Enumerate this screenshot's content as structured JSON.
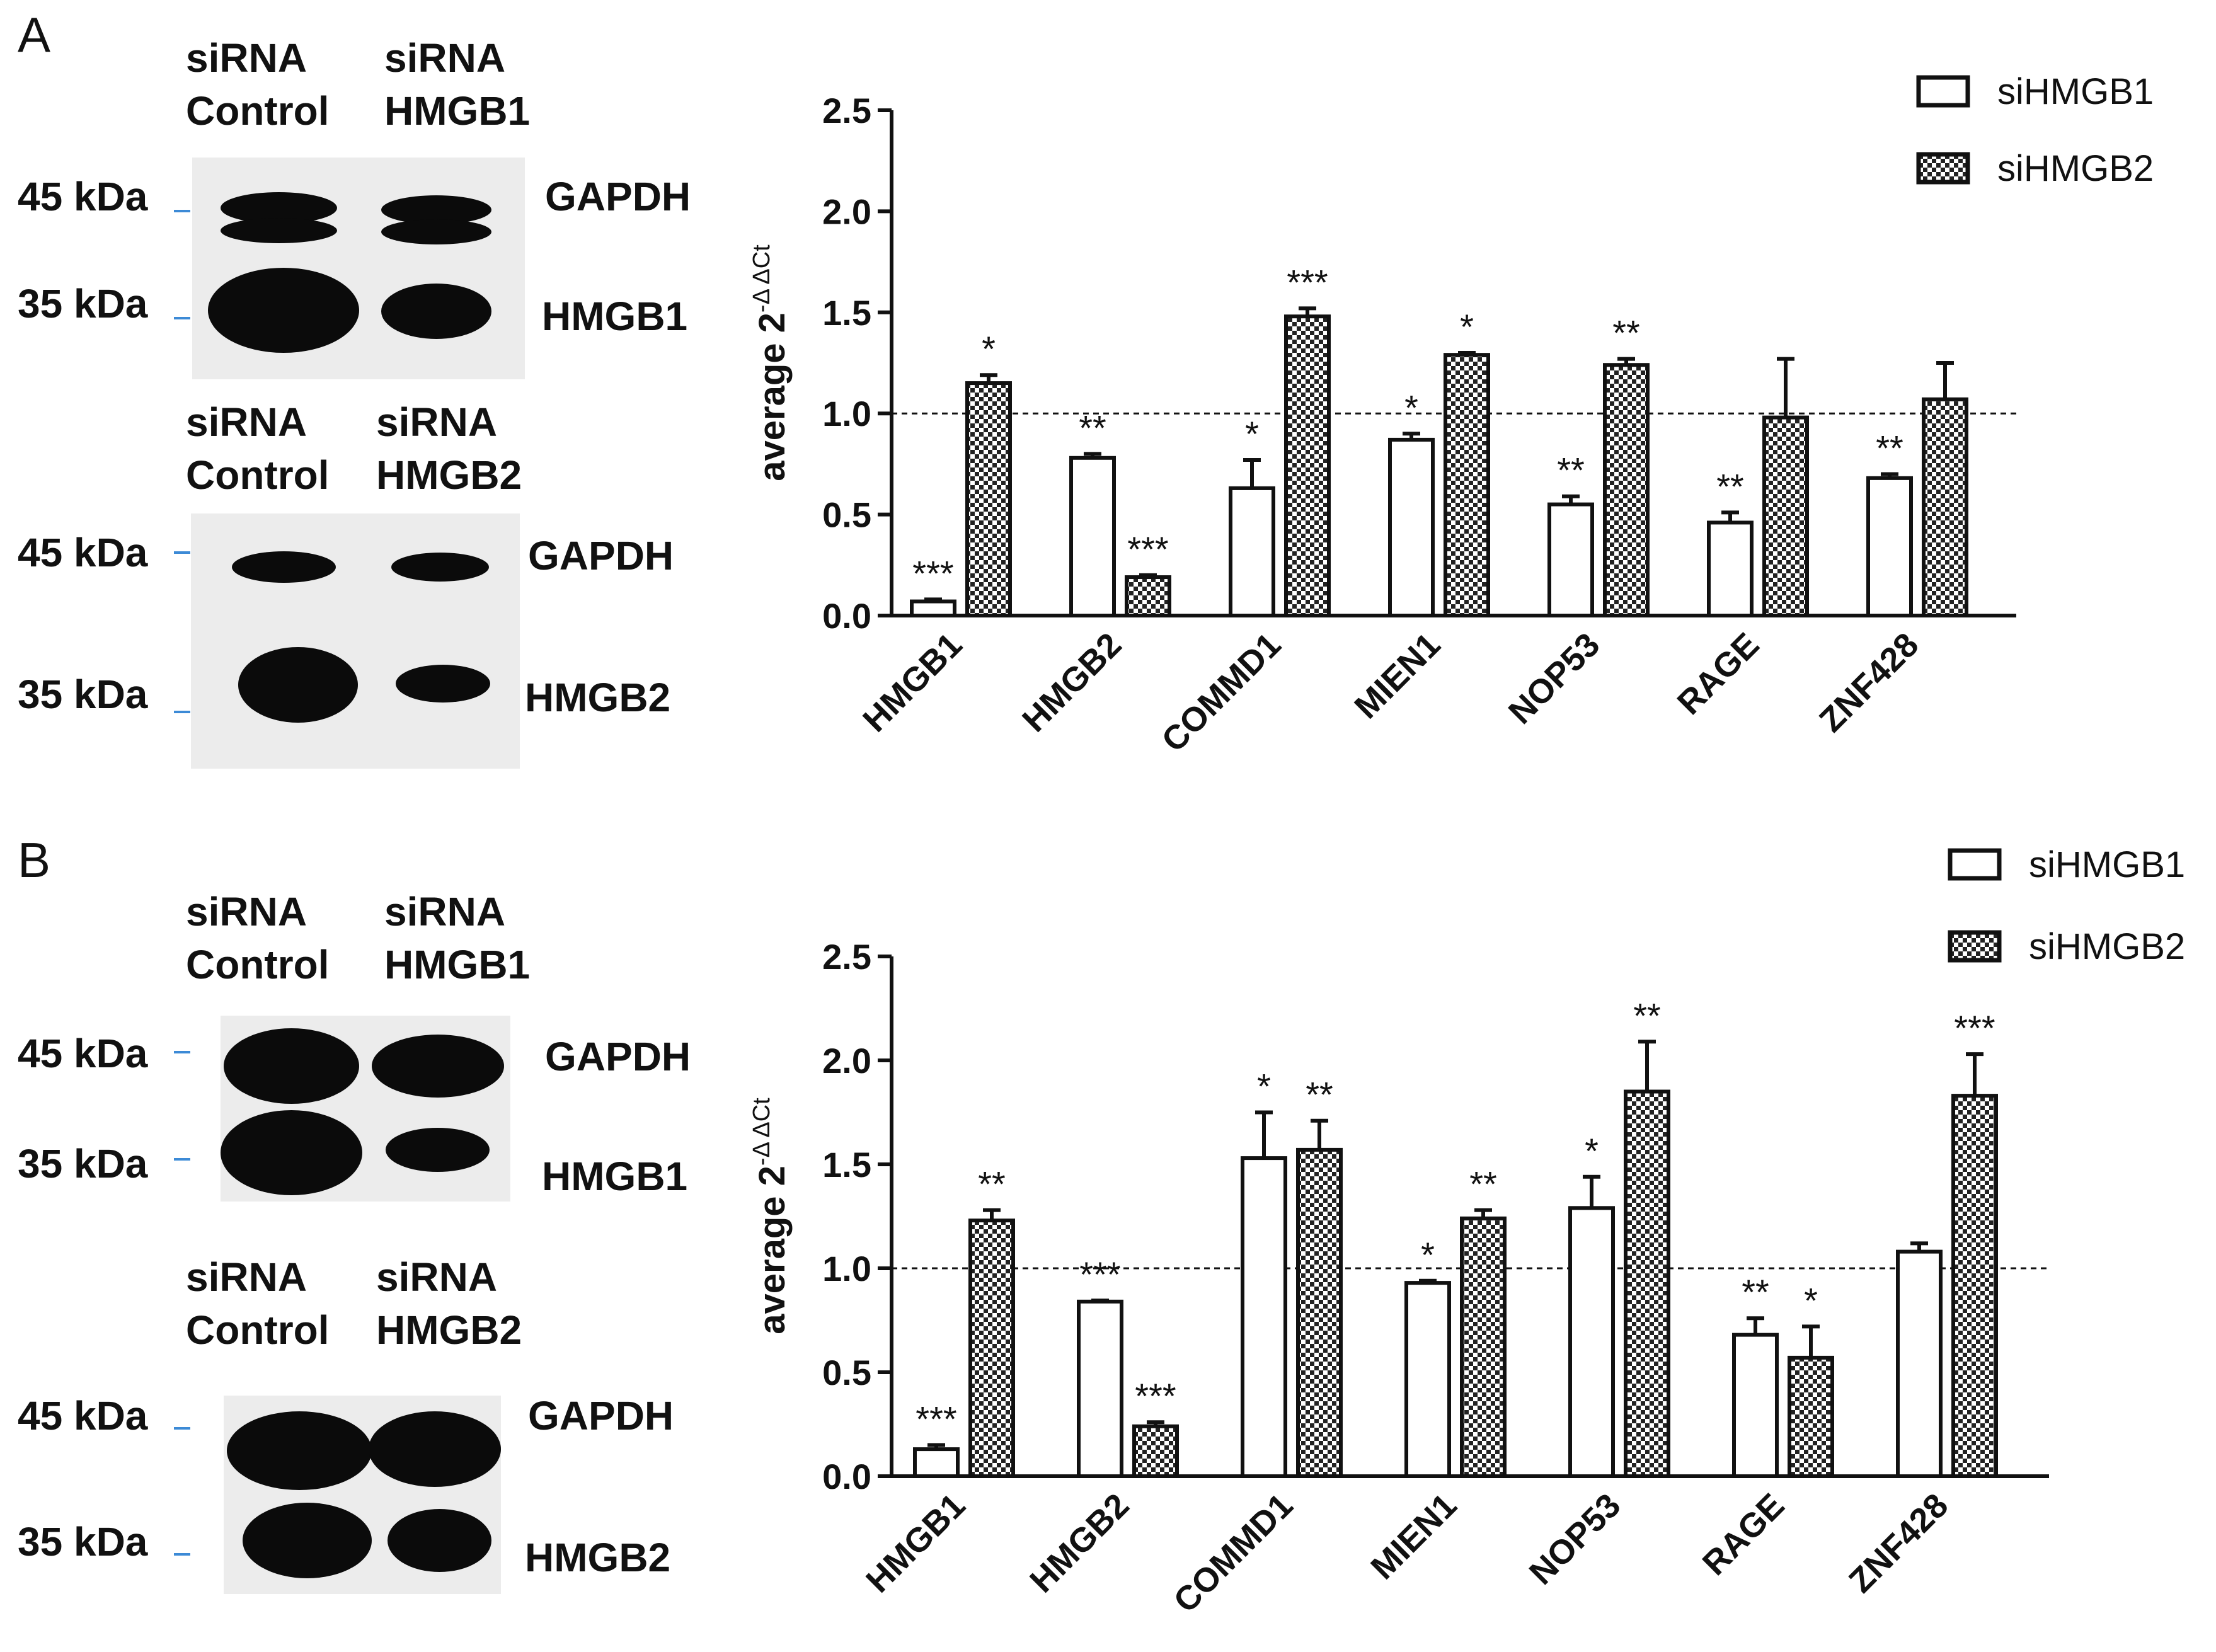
{
  "panels": [
    {
      "letter": "A",
      "blot_top": {
        "lane_left": "siRNA\nControl",
        "lane_right": "siRNA\nHMGB1",
        "mw_upper": "45 kDa",
        "mw_lower": "35 kDa",
        "band_upper": "GAPDH",
        "band_lower": "HMGB1"
      },
      "blot_bottom": {
        "lane_left": "siRNA\nControl",
        "lane_right": "siRNA\nHMGB2",
        "mw_upper": "45 kDa",
        "mw_lower": "35 kDa",
        "band_upper": "GAPDH",
        "band_lower": "HMGB2"
      }
    },
    {
      "letter": "B",
      "blot_top": {
        "lane_left": "siRNA\nControl",
        "lane_right": "siRNA\nHMGB1",
        "mw_upper": "45 kDa",
        "mw_lower": "35 kDa",
        "band_upper": "GAPDH",
        "band_lower": "HMGB1"
      },
      "blot_bottom": {
        "lane_left": "siRNA\nControl",
        "lane_right": "siRNA\nHMGB2",
        "mw_upper": "45 kDa",
        "mw_lower": "35 kDa",
        "band_upper": "GAPDH",
        "band_lower": "HMGB2"
      }
    }
  ],
  "chart_data": [
    {
      "type": "bar",
      "panel": "A",
      "ylabel_base": "average 2",
      "ylabel_sup": "-Δ ΔCt",
      "ylim": [
        0,
        2.5
      ],
      "yticks": [
        "0.0",
        "0.5",
        "1.0",
        "1.5",
        "2.0",
        "2.5"
      ],
      "reference_line": 1.0,
      "legend_position": "top-right",
      "categories": [
        "HMGB1",
        "HMGB2",
        "COMMD1",
        "MIEN1",
        "NOP53",
        "RAGE",
        "ZNF428"
      ],
      "series": [
        {
          "name": "siHMGB1",
          "fill": "open",
          "values": [
            0.07,
            0.78,
            0.63,
            0.87,
            0.55,
            0.46,
            0.68
          ],
          "errors": [
            0.01,
            0.02,
            0.14,
            0.03,
            0.04,
            0.05,
            0.02
          ],
          "significance": [
            "***",
            "**",
            "*",
            "*",
            "**",
            "**",
            "**"
          ]
        },
        {
          "name": "siHMGB2",
          "fill": "checkered",
          "values": [
            1.15,
            0.19,
            1.48,
            1.29,
            1.24,
            0.98,
            1.07
          ],
          "errors": [
            0.04,
            0.01,
            0.04,
            0.01,
            0.03,
            0.29,
            0.18
          ],
          "significance": [
            "*",
            "***",
            "***",
            "*",
            "**",
            "",
            ""
          ]
        }
      ]
    },
    {
      "type": "bar",
      "panel": "B",
      "ylabel_base": "average 2",
      "ylabel_sup": "-Δ ΔCt",
      "ylim": [
        0,
        2.5
      ],
      "yticks": [
        "0.0",
        "0.5",
        "1.0",
        "1.5",
        "2.0",
        "2.5"
      ],
      "reference_line": 1.0,
      "legend_position": "top-right",
      "categories": [
        "HMGB1",
        "HMGB2",
        "COMMD1",
        "MIEN1",
        "NOP53",
        "RAGE",
        "ZNF428"
      ],
      "series": [
        {
          "name": "siHMGB1",
          "fill": "open",
          "values": [
            0.13,
            0.84,
            1.53,
            0.93,
            1.29,
            0.68,
            1.08
          ],
          "errors": [
            0.02,
            0.005,
            0.22,
            0.01,
            0.15,
            0.08,
            0.04
          ],
          "significance": [
            "***",
            "***",
            "*",
            "*",
            "*",
            "**",
            ""
          ]
        },
        {
          "name": "siHMGB2",
          "fill": "checkered",
          "values": [
            1.23,
            0.24,
            1.57,
            1.24,
            1.85,
            0.57,
            1.83
          ],
          "errors": [
            0.05,
            0.02,
            0.14,
            0.04,
            0.24,
            0.15,
            0.2
          ],
          "significance": [
            "**",
            "***",
            "**",
            "**",
            "**",
            "*",
            "***"
          ]
        }
      ]
    }
  ]
}
